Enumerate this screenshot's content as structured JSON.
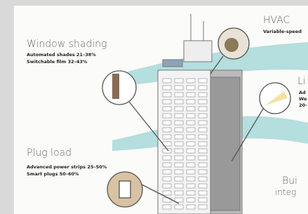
{
  "sections": [
    {
      "title": "Window shading",
      "items": [
        "Automated shades 21–38%",
        "Switchable film 32–43%"
      ]
    },
    {
      "title": "HVAC",
      "items": [
        "Variable-speed"
      ]
    },
    {
      "title": "Li",
      "items": [
        "Ad",
        "We",
        "20-"
      ]
    },
    {
      "title": "Plug load",
      "items": [
        "Advanced power strips 25–50%",
        "Smart plugs 50–60%"
      ]
    },
    {
      "title": "Bui",
      "items": [
        "integ"
      ]
    }
  ]
}
